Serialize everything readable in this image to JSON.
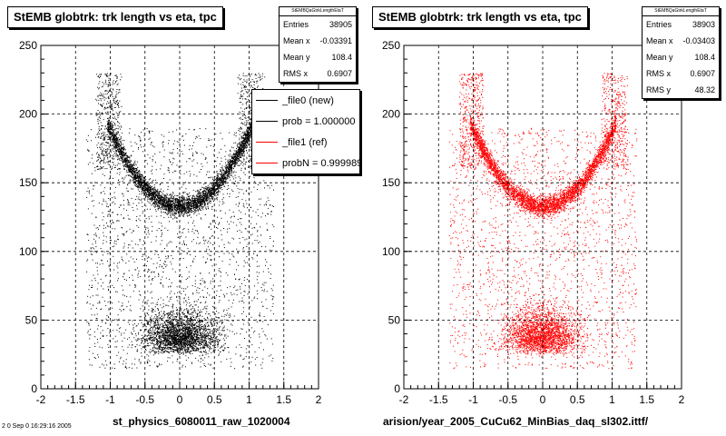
{
  "chart_data": [
    {
      "type": "scatter",
      "title": "StEMB globtrk: trk length vs eta, tpc",
      "xlabel": "st_physics_6080011_raw_1020004",
      "ylabel": "",
      "xlim": [
        -2,
        2
      ],
      "ylim": [
        0,
        250
      ],
      "x_ticks": [
        "-2",
        "-1.5",
        "-1",
        "-0.5",
        "0",
        "0.5",
        "1",
        "1.5",
        "2"
      ],
      "y_ticks": [
        "0",
        "50",
        "100",
        "150",
        "200",
        "250"
      ],
      "grid": true,
      "marker_color": "#000000",
      "stats": {
        "header": "StEMBQaGtrkLengthEtaT",
        "rows": [
          {
            "label": "Entries",
            "value": "38905"
          },
          {
            "label": "Mean x",
            "value": "-0.03391"
          },
          {
            "label": "Mean y",
            "value": "108.4"
          },
          {
            "label": "RMS x",
            "value": "0.6907"
          }
        ]
      },
      "legend": {
        "placement": "top-right",
        "entries": [
          {
            "label": "_file0 (new)",
            "color": "#000000"
          },
          {
            "label": "prob = 1.000000",
            "color": "#000000"
          },
          {
            "label": "_file1 (ref)",
            "color": "#ff0000"
          },
          {
            "label": "probN = 0.999989",
            "color": "#ff0000"
          }
        ]
      },
      "series": [
        {
          "values": [
            [
              -0.9,
              170
            ],
            [
              -0.75,
              165
            ],
            [
              -0.6,
              158
            ],
            [
              -0.45,
              150
            ],
            [
              -0.3,
              143
            ],
            [
              -0.15,
              138
            ],
            [
              0,
              136
            ],
            [
              0.15,
              138
            ],
            [
              0.3,
              143
            ],
            [
              0.45,
              150
            ],
            [
              0.6,
              158
            ],
            [
              0.75,
              165
            ],
            [
              0.9,
              170
            ],
            [
              -1.05,
              195
            ],
            [
              -0.95,
              210
            ],
            [
              1.05,
              195
            ],
            [
              1.15,
              205
            ],
            [
              -0.6,
              40
            ],
            [
              -0.3,
              30
            ],
            [
              0,
              28
            ],
            [
              0.3,
              30
            ],
            [
              0.6,
              40
            ],
            [
              -0.8,
              80
            ],
            [
              0.8,
              80
            ],
            [
              -0.2,
              95
            ],
            [
              0.2,
              95
            ],
            [
              0,
              60
            ]
          ]
        }
      ]
    },
    {
      "type": "scatter",
      "title": "StEMB globtrk: trk length vs eta, tpc",
      "xlabel": "arision/year_2005_CuCu62_MinBias_daq_sl302.ittf/",
      "ylabel": "",
      "xlim": [
        -2,
        2
      ],
      "ylim": [
        0,
        250
      ],
      "x_ticks": [
        "-2",
        "-1.5",
        "-1",
        "-0.5",
        "0",
        "0.5",
        "1",
        "1.5",
        "2"
      ],
      "y_ticks": [
        "0",
        "50",
        "100",
        "150",
        "200",
        "250"
      ],
      "grid": true,
      "marker_color": "#ff0000",
      "stats": {
        "header": "StEMBQaGtrkLengthEtaT",
        "rows": [
          {
            "label": "Entries",
            "value": "38903"
          },
          {
            "label": "Mean x",
            "value": "-0.03403"
          },
          {
            "label": "Mean y",
            "value": "108.4"
          },
          {
            "label": "RMS x",
            "value": "0.6907"
          },
          {
            "label": "RMS y",
            "value": "48.32"
          }
        ]
      },
      "series": [
        {
          "values": [
            [
              -0.9,
              170
            ],
            [
              -0.75,
              165
            ],
            [
              -0.6,
              158
            ],
            [
              -0.45,
              150
            ],
            [
              -0.3,
              143
            ],
            [
              -0.15,
              138
            ],
            [
              0,
              136
            ],
            [
              0.15,
              138
            ],
            [
              0.3,
              143
            ],
            [
              0.45,
              150
            ],
            [
              0.6,
              158
            ],
            [
              0.75,
              165
            ],
            [
              0.9,
              170
            ],
            [
              -1.05,
              195
            ],
            [
              -0.95,
              210
            ],
            [
              1.05,
              195
            ],
            [
              1.15,
              205
            ],
            [
              -0.6,
              40
            ],
            [
              -0.3,
              30
            ],
            [
              0,
              28
            ],
            [
              0.3,
              30
            ],
            [
              0.6,
              40
            ],
            [
              -0.8,
              80
            ],
            [
              0.8,
              80
            ],
            [
              -0.2,
              95
            ],
            [
              0.2,
              95
            ],
            [
              0,
              60
            ]
          ]
        }
      ]
    }
  ],
  "footer_text": "2 0 Sep 0 16:29:16 2005"
}
